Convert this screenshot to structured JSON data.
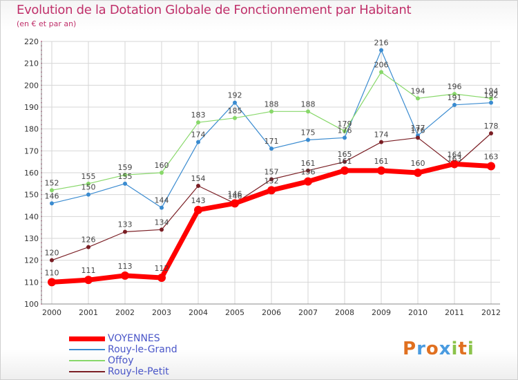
{
  "title": "Evolution de la Dotation Globale de Fonctionnement par Habitant",
  "subtitle": "(en € et par an)",
  "brand": {
    "text": "Proxiti",
    "letters": [
      "P",
      "r",
      "o",
      "x",
      "i",
      "t",
      "i"
    ],
    "colors": [
      "#e07020",
      "#4a9be0",
      "#e07020",
      "#4a9be0",
      "#8bc34a",
      "#e07020",
      "#8bc34a"
    ]
  },
  "chart_data": {
    "type": "line",
    "title": "Evolution de la Dotation Globale de Fonctionnement par Habitant",
    "subtitle": "(en € et par an)",
    "x": [
      "2000",
      "2001",
      "2002",
      "2003",
      "2004",
      "2005",
      "2006",
      "2007",
      "2008",
      "2009",
      "2010",
      "2011",
      "2012"
    ],
    "ylim": [
      100,
      220
    ],
    "yticks": [
      100,
      110,
      120,
      130,
      140,
      150,
      160,
      170,
      180,
      190,
      200,
      210,
      220
    ],
    "grid": true,
    "legend": "bottom-left",
    "series": [
      {
        "name": "Rouy-le-Grand",
        "color": "#3a8bd0",
        "values": [
          146,
          150,
          155,
          144,
          174,
          192,
          171,
          175,
          176,
          216,
          177,
          191,
          192
        ]
      },
      {
        "name": "Offoy",
        "color": "#88d86a",
        "values": [
          152,
          155,
          159,
          160,
          183,
          185,
          188,
          188,
          179,
          206,
          194,
          196,
          194
        ]
      },
      {
        "name": "Rouy-le-Petit",
        "color": "#7a1e24",
        "values": [
          120,
          126,
          133,
          134,
          154,
          146,
          157,
          161,
          165,
          174,
          176,
          163,
          178
        ]
      },
      {
        "name": "VOYENNES",
        "color": "#ff0000",
        "values": [
          110,
          111,
          113,
          112,
          143,
          146,
          152,
          156,
          161,
          161,
          160,
          164,
          163
        ]
      }
    ]
  }
}
